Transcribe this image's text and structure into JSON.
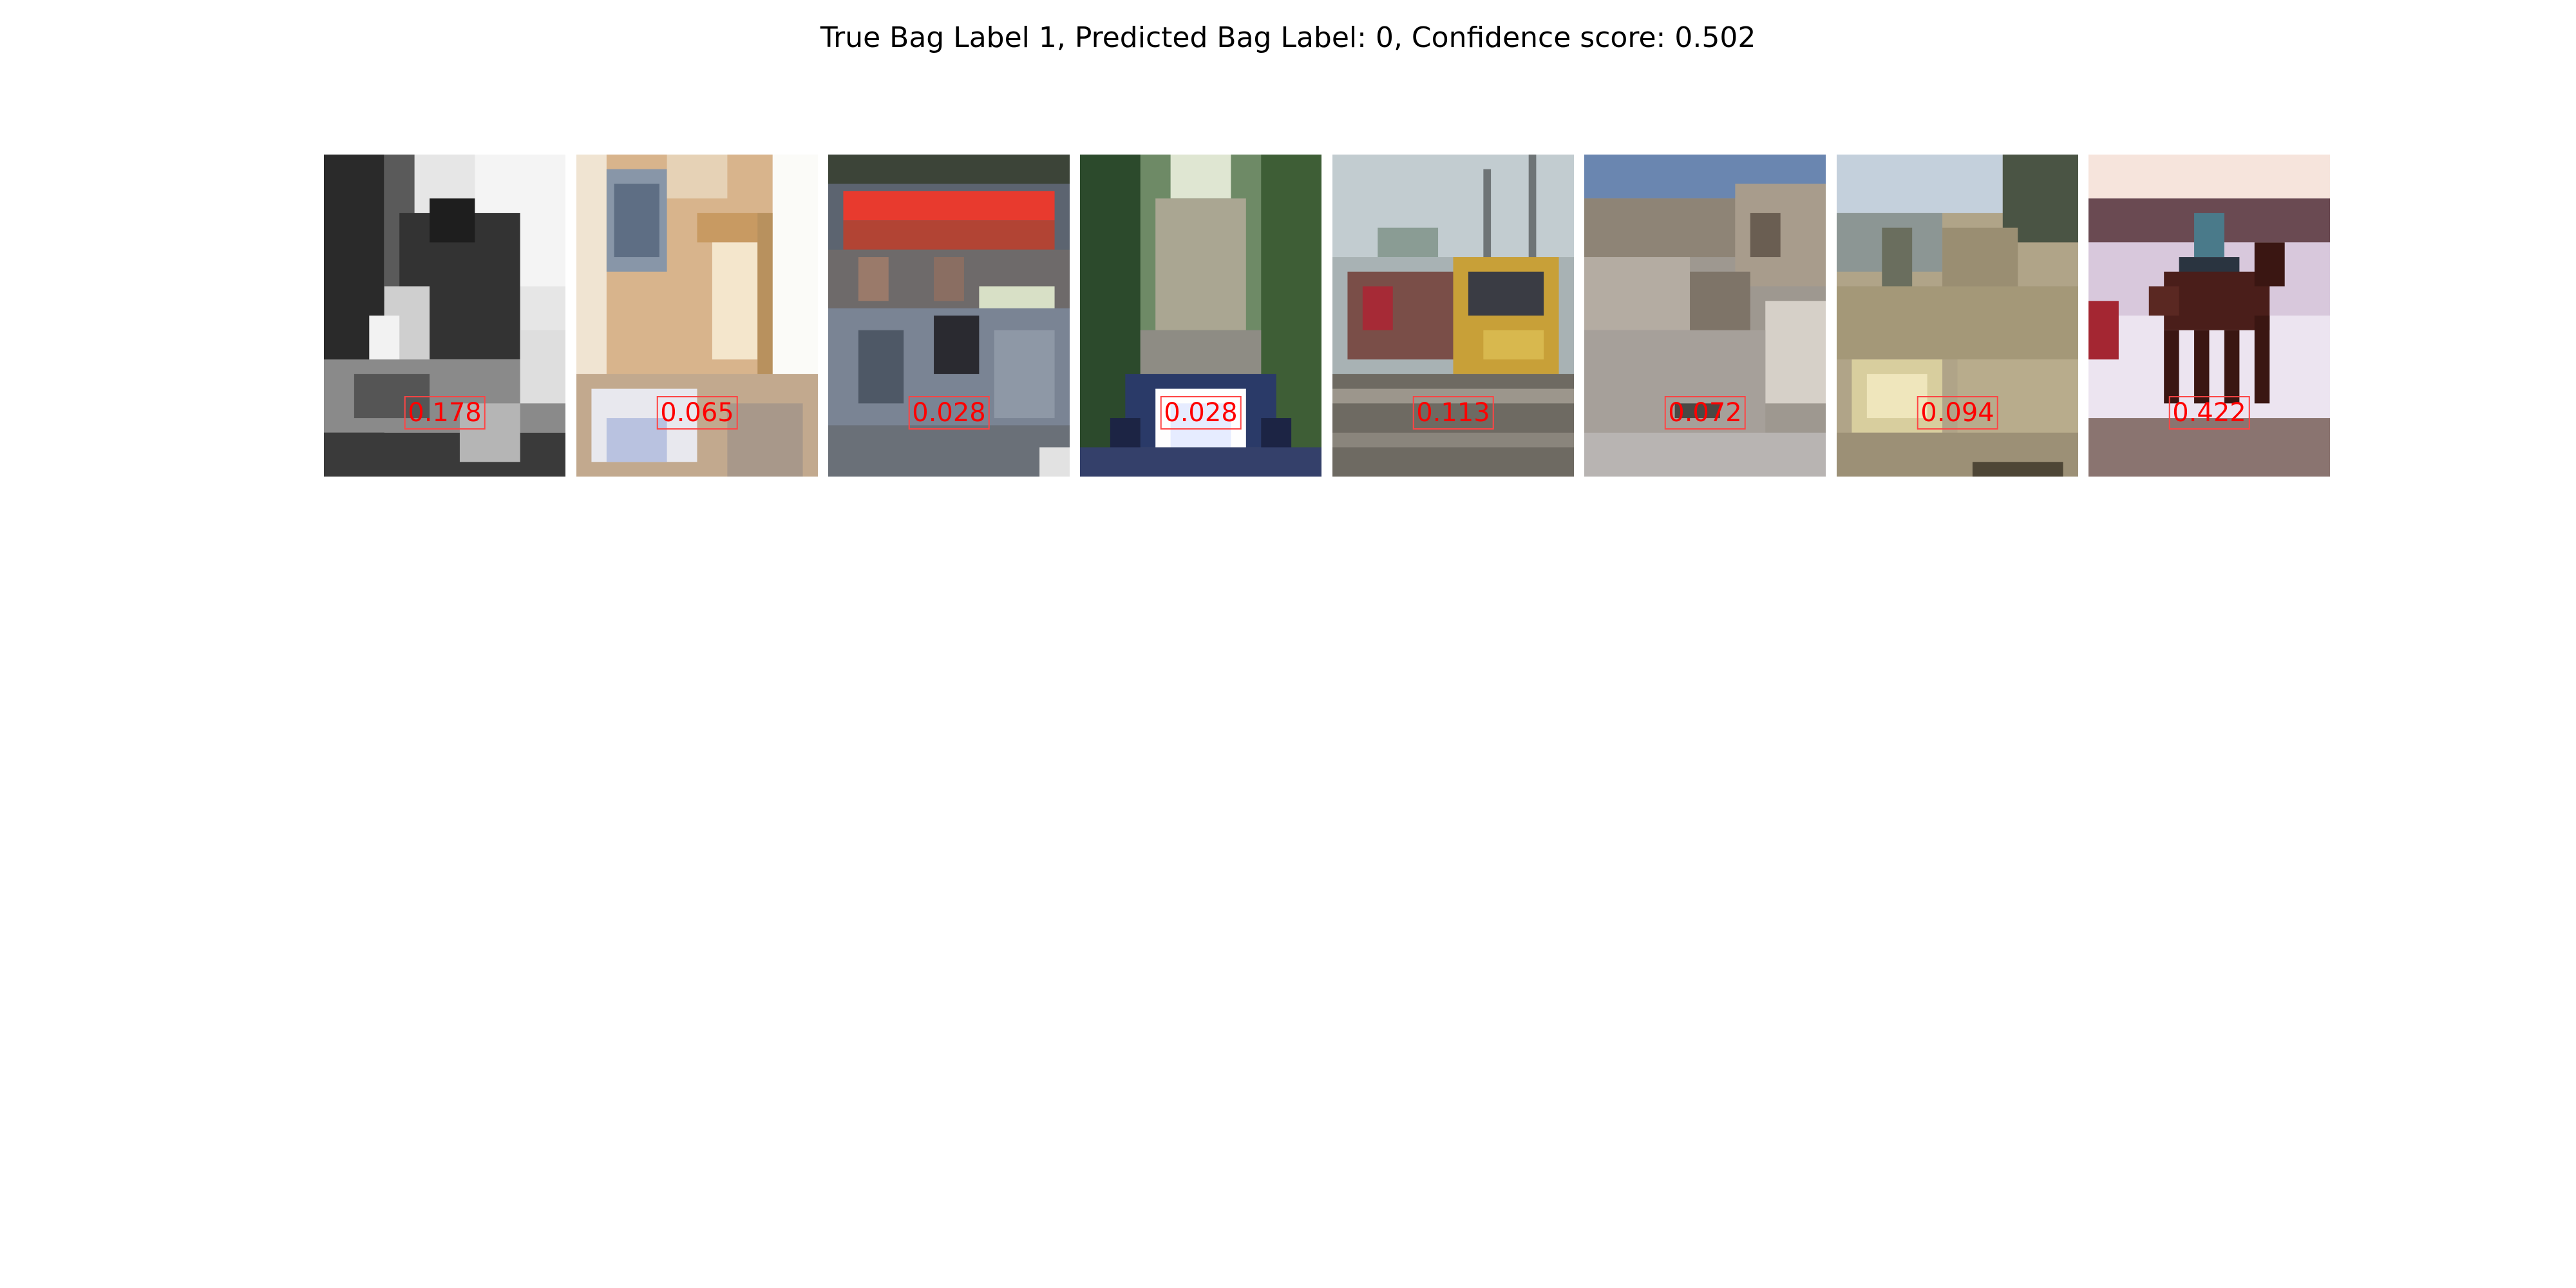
{
  "title": "True Bag Label 1, Predicted Bag Label: 0, Confidence score: 0.502",
  "instances": [
    {
      "score": "0.178",
      "subject": "grayscale animal"
    },
    {
      "score": "0.065",
      "subject": "room interior"
    },
    {
      "score": "0.028",
      "subject": "shop front"
    },
    {
      "score": "0.028",
      "subject": "motorcycle on road"
    },
    {
      "score": "0.113",
      "subject": "train"
    },
    {
      "score": "0.072",
      "subject": "rocky terrain"
    },
    {
      "score": "0.094",
      "subject": "sandy terrain"
    },
    {
      "score": "0.422",
      "subject": "horse and rider"
    }
  ],
  "colors": {
    "score_text": "#ff0000",
    "score_border": "#ff4444",
    "title_text": "#000000",
    "background": "#ffffff"
  }
}
